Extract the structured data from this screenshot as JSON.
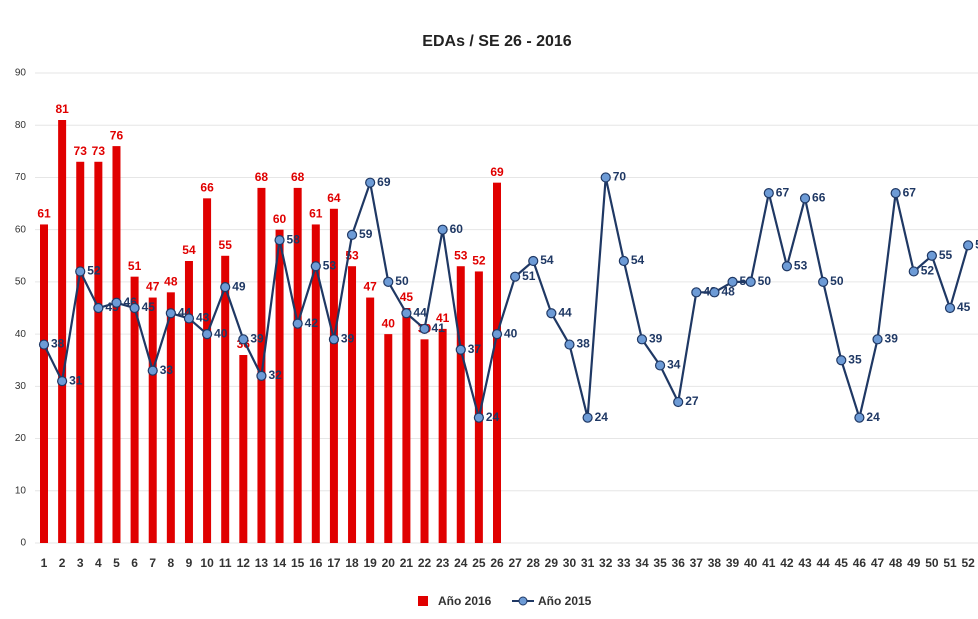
{
  "chart_data": {
    "type": "combo",
    "title": "EDAs / SE 26 - 2016",
    "categories": [
      "1",
      "2",
      "3",
      "4",
      "5",
      "6",
      "7",
      "8",
      "9",
      "10",
      "11",
      "12",
      "13",
      "14",
      "15",
      "16",
      "17",
      "18",
      "19",
      "20",
      "21",
      "22",
      "23",
      "24",
      "25",
      "26",
      "27",
      "28",
      "29",
      "30",
      "31",
      "32",
      "33",
      "34",
      "35",
      "36",
      "37",
      "38",
      "39",
      "40",
      "41",
      "42",
      "43",
      "44",
      "45",
      "46",
      "47",
      "48",
      "49",
      "50",
      "51",
      "52"
    ],
    "series": [
      {
        "name": "Año 2016",
        "type": "bar",
        "color": "#e00000",
        "values": [
          61,
          81,
          73,
          73,
          76,
          51,
          47,
          48,
          54,
          66,
          55,
          36,
          68,
          60,
          68,
          61,
          64,
          53,
          47,
          40,
          45,
          39,
          41,
          53,
          52,
          69,
          null,
          null,
          null,
          null,
          null,
          null,
          null,
          null,
          null,
          null,
          null,
          null,
          null,
          null,
          null,
          null,
          null,
          null,
          null,
          null,
          null,
          null,
          null,
          null,
          null,
          null
        ]
      },
      {
        "name": "Año 2015",
        "type": "line",
        "color": "#1f3864",
        "values": [
          38,
          31,
          52,
          45,
          46,
          45,
          33,
          44,
          43,
          40,
          49,
          39,
          32,
          58,
          42,
          53,
          39,
          59,
          69,
          50,
          44,
          41,
          60,
          37,
          24,
          40,
          51,
          54,
          44,
          38,
          24,
          70,
          54,
          39,
          34,
          27,
          48,
          48,
          50,
          50,
          67,
          53,
          66,
          50,
          35,
          24,
          39,
          67,
          52,
          55,
          45,
          57
        ]
      }
    ],
    "ylim": [
      0,
      90
    ],
    "yticks": [
      0,
      10,
      20,
      30,
      40,
      50,
      60,
      70,
      80,
      90
    ],
    "grid": true,
    "legend": "bottom"
  }
}
